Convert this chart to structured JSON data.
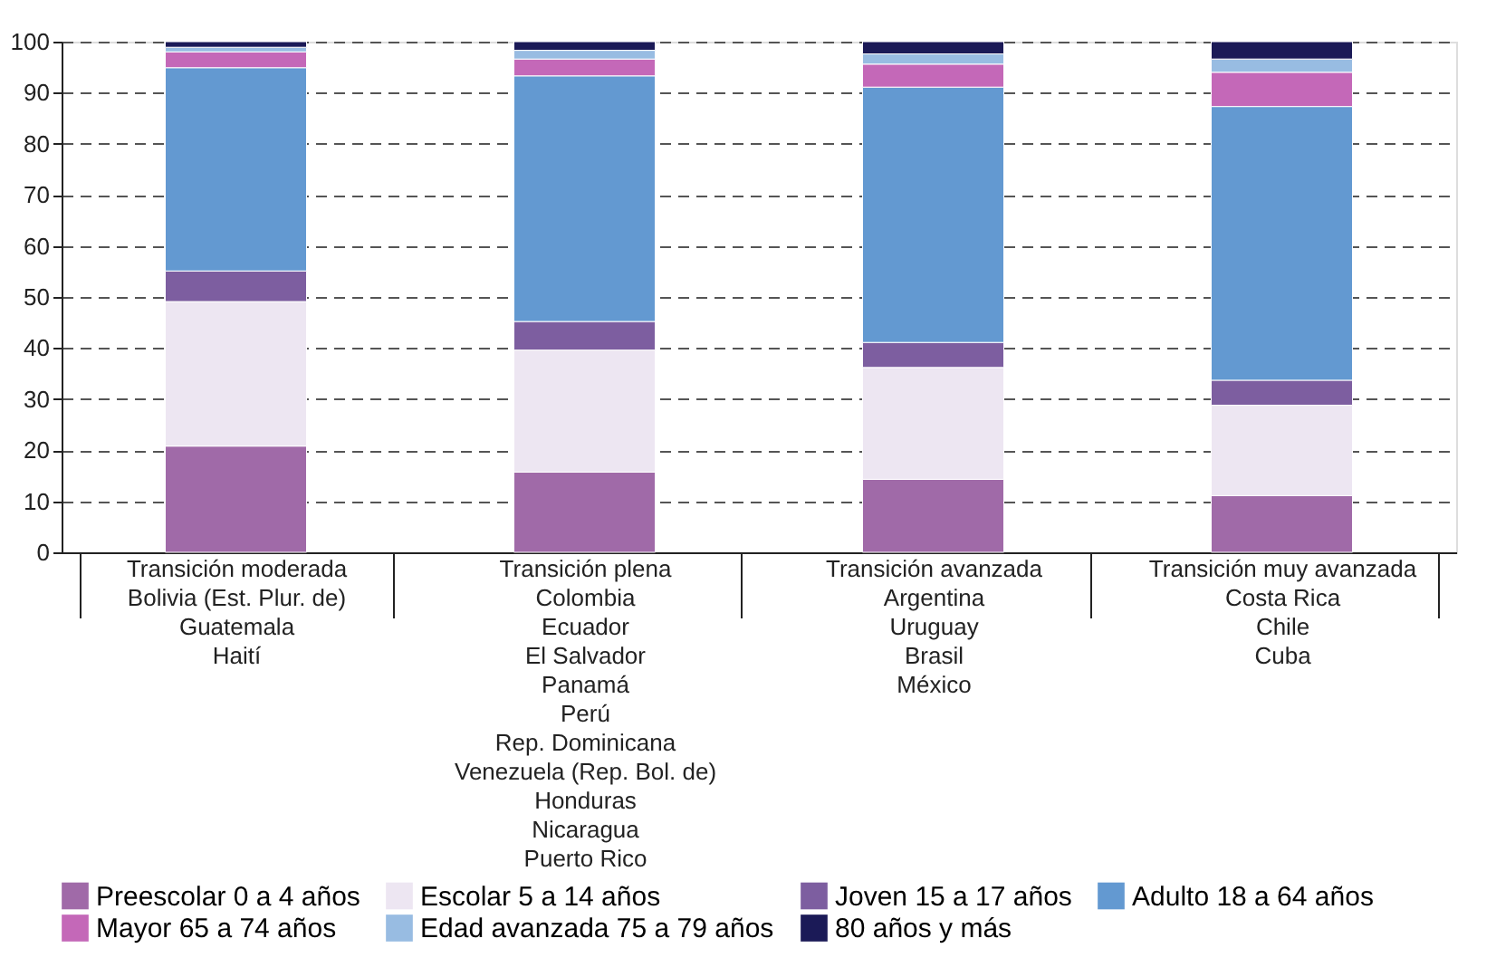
{
  "chart_data": {
    "type": "bar",
    "stacked": true,
    "categories": [
      "Transición moderada\nBolivia (Est. Plur. de)\nGuatemala\nHaití",
      "Transición plena\nColombia\nEcuador\nEl Salvador\nPanamá\nPerú\nRep. Dominicana\nVenezuela (Rep. Bol. de)\nHonduras\nNicaragua\nPuerto Rico",
      "Transición avanzada\nArgentina\nUruguay\nBrasil\nMéxico",
      "Transición muy avanzada\nCosta Rica\nChile\nCuba"
    ],
    "series": [
      {
        "name": "Preescolar 0 a 4 años",
        "color": "#a06aa8",
        "values": [
          20.8,
          15.7,
          14.3,
          11.1
        ]
      },
      {
        "name": "Escolar 5 a 14 años",
        "color": "#ede6f2",
        "values": [
          28.3,
          23.9,
          21.9,
          17.7
        ]
      },
      {
        "name": "Joven 15 a 17 años",
        "color": "#7d5ea0",
        "values": [
          6.0,
          5.6,
          4.9,
          4.9
        ]
      },
      {
        "name": "Adulto 18 a 64 años",
        "color": "#6399d1",
        "values": [
          39.8,
          48.1,
          50.0,
          53.6
        ]
      },
      {
        "name": "Mayor 65 a 74 años",
        "color": "#c468b8",
        "values": [
          3.1,
          3.3,
          4.5,
          6.7
        ]
      },
      {
        "name": "Edad avanzada 75 a 79 años",
        "color": "#98bce2",
        "values": [
          0.9,
          1.7,
          2.0,
          2.6
        ]
      },
      {
        "name": "80 años y más",
        "color": "#1b1a57",
        "values": [
          1.1,
          1.7,
          2.4,
          3.4
        ]
      }
    ],
    "ylim": [
      0,
      100
    ],
    "yticks": [
      0,
      10,
      20,
      30,
      40,
      50,
      60,
      70,
      80,
      90,
      100
    ],
    "grid": "y",
    "legend": "bottom"
  }
}
